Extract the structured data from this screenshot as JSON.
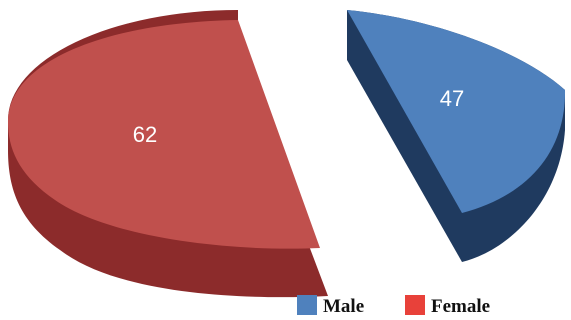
{
  "chart_data": {
    "type": "pie",
    "style": "3d-exploded",
    "categories": [
      "Male",
      "Female"
    ],
    "values": [
      47,
      62
    ],
    "colors": [
      "#4f81bd",
      "#c0504d"
    ],
    "side_colors": [
      "#1f3a5f",
      "#8c2b2b"
    ],
    "legend": {
      "position": "bottom-right",
      "items": [
        {
          "label": "Male",
          "color": "#4f81bd"
        },
        {
          "label": "Female",
          "color": "#e8413a"
        }
      ]
    },
    "data_labels": [
      "47",
      "62"
    ]
  }
}
